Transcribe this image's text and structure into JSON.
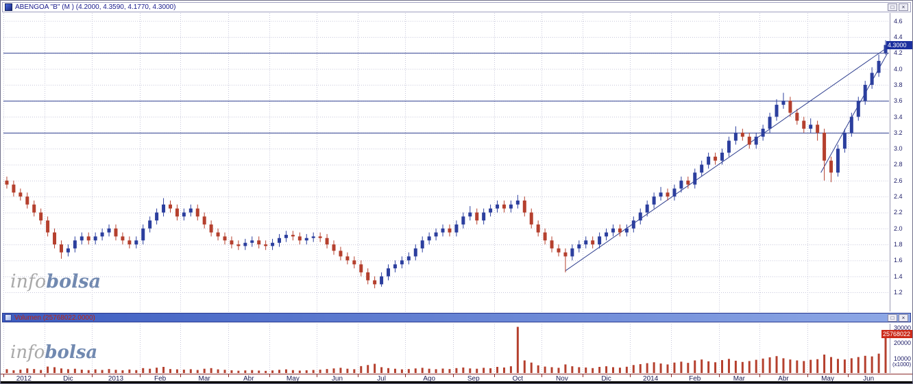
{
  "panes": {
    "price": {
      "title": "ABENGOA \"B\" (M ) (4.2000, 4.3590, 4.1770, 4.3000)"
    },
    "volume": {
      "title": "Volumen (25768022.0000)"
    }
  },
  "window_buttons": {
    "maximize": "□",
    "close": "×"
  },
  "watermark": {
    "info": "info",
    "bolsa": "bolsa"
  },
  "chart_data": [
    {
      "type": "candlestick",
      "title": "ABENGOA \"B\" (M )",
      "last_quote": {
        "open": 4.2,
        "high": 4.359,
        "low": 4.177,
        "close": 4.3
      },
      "ylim": [
        0.96,
        4.7
      ],
      "yticks": [
        4.6,
        4.4,
        4.2,
        4.0,
        3.8,
        3.6,
        3.4,
        3.2,
        3.0,
        2.8,
        2.6,
        2.4,
        2.2,
        2.0,
        1.8,
        1.6,
        1.4,
        1.2
      ],
      "levels": [
        4.2,
        3.6,
        3.2
      ],
      "trendlines": [
        {
          "x1": 82,
          "p1": 1.47,
          "x2": 129.8,
          "p2": 4.3
        },
        {
          "x1": 119.5,
          "p1": 2.7,
          "x2": 129.3,
          "p2": 4.2
        }
      ],
      "tag_value": 4.3,
      "tag_label": "4.3000",
      "months": [
        {
          "label": "2012",
          "start": 0
        },
        {
          "label": "Dic",
          "start": 6
        },
        {
          "label": "2013",
          "start": 13
        },
        {
          "label": "Feb",
          "start": 20
        },
        {
          "label": "Mar",
          "start": 26
        },
        {
          "label": "Abr",
          "start": 33
        },
        {
          "label": "May",
          "start": 39
        },
        {
          "label": "Jun",
          "start": 46
        },
        {
          "label": "Jul",
          "start": 52
        },
        {
          "label": "Ago",
          "start": 59
        },
        {
          "label": "Sep",
          "start": 66
        },
        {
          "label": "Oct",
          "start": 72
        },
        {
          "label": "Nov",
          "start": 79
        },
        {
          "label": "Dic",
          "start": 85
        },
        {
          "label": "2014",
          "start": 92
        },
        {
          "label": "Feb",
          "start": 98
        },
        {
          "label": "Mar",
          "start": 105
        },
        {
          "label": "Abr",
          "start": 111
        },
        {
          "label": "May",
          "start": 118
        },
        {
          "label": "Jun",
          "start": 124
        }
      ],
      "bars": [
        [
          2.6,
          2.65,
          2.5,
          2.55
        ],
        [
          2.55,
          2.6,
          2.4,
          2.45
        ],
        [
          2.45,
          2.5,
          2.35,
          2.4
        ],
        [
          2.4,
          2.45,
          2.25,
          2.3
        ],
        [
          2.3,
          2.35,
          2.15,
          2.2
        ],
        [
          2.2,
          2.25,
          2.05,
          2.1
        ],
        [
          2.1,
          2.15,
          1.9,
          1.95
        ],
        [
          1.95,
          2.0,
          1.75,
          1.8
        ],
        [
          1.8,
          1.85,
          1.62,
          1.7
        ],
        [
          1.7,
          1.8,
          1.65,
          1.75
        ],
        [
          1.75,
          1.9,
          1.7,
          1.85
        ],
        [
          1.85,
          1.95,
          1.8,
          1.9
        ],
        [
          1.9,
          1.95,
          1.8,
          1.85
        ],
        [
          1.85,
          1.95,
          1.8,
          1.9
        ],
        [
          1.9,
          2.0,
          1.85,
          1.95
        ],
        [
          1.95,
          2.05,
          1.9,
          2.0
        ],
        [
          2.0,
          2.05,
          1.85,
          1.9
        ],
        [
          1.9,
          1.95,
          1.8,
          1.85
        ],
        [
          1.85,
          1.9,
          1.75,
          1.8
        ],
        [
          1.8,
          1.9,
          1.75,
          1.85
        ],
        [
          1.85,
          2.05,
          1.8,
          2.0
        ],
        [
          2.0,
          2.15,
          1.95,
          2.1
        ],
        [
          2.1,
          2.25,
          2.05,
          2.2
        ],
        [
          2.2,
          2.38,
          2.15,
          2.3
        ],
        [
          2.3,
          2.35,
          2.2,
          2.25
        ],
        [
          2.25,
          2.3,
          2.1,
          2.15
        ],
        [
          2.15,
          2.25,
          2.1,
          2.2
        ],
        [
          2.2,
          2.3,
          2.15,
          2.25
        ],
        [
          2.25,
          2.3,
          2.1,
          2.15
        ],
        [
          2.15,
          2.2,
          2.0,
          2.05
        ],
        [
          2.05,
          2.1,
          1.9,
          1.95
        ],
        [
          1.95,
          2.0,
          1.85,
          1.9
        ],
        [
          1.9,
          1.95,
          1.8,
          1.85
        ],
        [
          1.85,
          1.9,
          1.75,
          1.8
        ],
        [
          1.8,
          1.85,
          1.73,
          1.78
        ],
        [
          1.78,
          1.87,
          1.73,
          1.82
        ],
        [
          1.82,
          1.9,
          1.77,
          1.85
        ],
        [
          1.85,
          1.9,
          1.75,
          1.8
        ],
        [
          1.8,
          1.85,
          1.73,
          1.78
        ],
        [
          1.78,
          1.87,
          1.73,
          1.82
        ],
        [
          1.82,
          1.93,
          1.77,
          1.88
        ],
        [
          1.88,
          1.97,
          1.83,
          1.92
        ],
        [
          1.92,
          1.97,
          1.85,
          1.9
        ],
        [
          1.9,
          1.95,
          1.8,
          1.85
        ],
        [
          1.85,
          1.93,
          1.8,
          1.88
        ],
        [
          1.88,
          1.95,
          1.83,
          1.9
        ],
        [
          1.9,
          1.95,
          1.83,
          1.88
        ],
        [
          1.88,
          1.93,
          1.75,
          1.8
        ],
        [
          1.8,
          1.85,
          1.67,
          1.72
        ],
        [
          1.72,
          1.77,
          1.6,
          1.65
        ],
        [
          1.65,
          1.7,
          1.55,
          1.6
        ],
        [
          1.6,
          1.65,
          1.5,
          1.55
        ],
        [
          1.55,
          1.6,
          1.4,
          1.45
        ],
        [
          1.45,
          1.5,
          1.3,
          1.35
        ],
        [
          1.35,
          1.4,
          1.25,
          1.3
        ],
        [
          1.3,
          1.45,
          1.27,
          1.4
        ],
        [
          1.4,
          1.55,
          1.35,
          1.5
        ],
        [
          1.5,
          1.6,
          1.45,
          1.55
        ],
        [
          1.55,
          1.65,
          1.5,
          1.6
        ],
        [
          1.6,
          1.7,
          1.55,
          1.65
        ],
        [
          1.65,
          1.8,
          1.6,
          1.75
        ],
        [
          1.75,
          1.9,
          1.7,
          1.85
        ],
        [
          1.85,
          1.95,
          1.8,
          1.9
        ],
        [
          1.9,
          2.0,
          1.85,
          1.95
        ],
        [
          1.95,
          2.05,
          1.9,
          2.0
        ],
        [
          2.0,
          2.05,
          1.9,
          1.95
        ],
        [
          1.95,
          2.1,
          1.9,
          2.05
        ],
        [
          2.05,
          2.2,
          2.0,
          2.15
        ],
        [
          2.15,
          2.28,
          2.1,
          2.2
        ],
        [
          2.2,
          2.25,
          2.05,
          2.1
        ],
        [
          2.1,
          2.25,
          2.05,
          2.2
        ],
        [
          2.2,
          2.3,
          2.15,
          2.25
        ],
        [
          2.25,
          2.35,
          2.2,
          2.3
        ],
        [
          2.3,
          2.35,
          2.2,
          2.25
        ],
        [
          2.25,
          2.35,
          2.2,
          2.3
        ],
        [
          2.3,
          2.42,
          2.25,
          2.35
        ],
        [
          2.35,
          2.4,
          2.15,
          2.2
        ],
        [
          2.2,
          2.25,
          2.0,
          2.05
        ],
        [
          2.05,
          2.1,
          1.9,
          1.95
        ],
        [
          1.95,
          2.0,
          1.8,
          1.85
        ],
        [
          1.85,
          1.9,
          1.7,
          1.75
        ],
        [
          1.75,
          1.8,
          1.65,
          1.7
        ],
        [
          1.7,
          1.75,
          1.45,
          1.65
        ],
        [
          1.65,
          1.8,
          1.6,
          1.75
        ],
        [
          1.75,
          1.85,
          1.7,
          1.8
        ],
        [
          1.8,
          1.9,
          1.75,
          1.85
        ],
        [
          1.85,
          1.9,
          1.75,
          1.8
        ],
        [
          1.8,
          1.95,
          1.75,
          1.9
        ],
        [
          1.9,
          2.0,
          1.85,
          1.95
        ],
        [
          1.95,
          2.05,
          1.9,
          2.0
        ],
        [
          2.0,
          2.05,
          1.9,
          1.95
        ],
        [
          1.95,
          2.05,
          1.9,
          2.0
        ],
        [
          2.0,
          2.15,
          1.95,
          2.1
        ],
        [
          2.1,
          2.25,
          2.05,
          2.2
        ],
        [
          2.2,
          2.35,
          2.15,
          2.3
        ],
        [
          2.3,
          2.45,
          2.25,
          2.4
        ],
        [
          2.4,
          2.52,
          2.35,
          2.45
        ],
        [
          2.45,
          2.5,
          2.35,
          2.4
        ],
        [
          2.4,
          2.55,
          2.35,
          2.5
        ],
        [
          2.5,
          2.65,
          2.45,
          2.6
        ],
        [
          2.6,
          2.65,
          2.5,
          2.55
        ],
        [
          2.55,
          2.75,
          2.5,
          2.7
        ],
        [
          2.7,
          2.85,
          2.65,
          2.8
        ],
        [
          2.8,
          2.95,
          2.75,
          2.9
        ],
        [
          2.9,
          2.95,
          2.8,
          2.85
        ],
        [
          2.85,
          3.0,
          2.8,
          2.95
        ],
        [
          2.95,
          3.15,
          2.9,
          3.1
        ],
        [
          3.1,
          3.28,
          3.05,
          3.2
        ],
        [
          3.2,
          3.25,
          3.1,
          3.15
        ],
        [
          3.15,
          3.2,
          3.0,
          3.05
        ],
        [
          3.05,
          3.2,
          3.0,
          3.15
        ],
        [
          3.15,
          3.3,
          3.1,
          3.25
        ],
        [
          3.25,
          3.45,
          3.2,
          3.4
        ],
        [
          3.4,
          3.62,
          3.35,
          3.55
        ],
        [
          3.55,
          3.7,
          3.5,
          3.6
        ],
        [
          3.6,
          3.65,
          3.4,
          3.45
        ],
        [
          3.45,
          3.5,
          3.3,
          3.35
        ],
        [
          3.35,
          3.4,
          3.2,
          3.25
        ],
        [
          3.25,
          3.38,
          3.2,
          3.3
        ],
        [
          3.3,
          3.35,
          3.1,
          3.2
        ],
        [
          3.2,
          3.25,
          2.6,
          2.85
        ],
        [
          2.85,
          2.9,
          2.58,
          2.7
        ],
        [
          2.7,
          3.05,
          2.65,
          3.0
        ],
        [
          3.0,
          3.25,
          2.95,
          3.2
        ],
        [
          3.2,
          3.45,
          3.15,
          3.4
        ],
        [
          3.4,
          3.65,
          3.35,
          3.6
        ],
        [
          3.6,
          3.85,
          3.55,
          3.8
        ],
        [
          3.8,
          4.02,
          3.75,
          3.95
        ],
        [
          3.95,
          4.18,
          3.9,
          4.1
        ],
        [
          4.2,
          4.359,
          4.177,
          4.3
        ]
      ],
      "colors": {
        "up": "#2c3f9e",
        "down": "#b5402e",
        "level": "#2f3f8f",
        "trend": "#2f3f8f",
        "grid": "#c6c6da"
      }
    },
    {
      "type": "bar",
      "title": "Volumen",
      "ylim": [
        0,
        32000
      ],
      "yticks": [
        30000,
        20000,
        10000
      ],
      "unit_label": "(x1000)",
      "tag_value": 25768,
      "tag_label": "25768022",
      "values": [
        2500,
        1800,
        2200,
        3000,
        2600,
        2000,
        4200,
        3800,
        3000,
        2500,
        2800,
        2200,
        1900,
        2400,
        2000,
        2600,
        2100,
        1800,
        2300,
        1900,
        3200,
        2800,
        3500,
        4000,
        2600,
        2400,
        2200,
        2500,
        2000,
        2800,
        3200,
        2400,
        2100,
        1800,
        1500,
        1700,
        1900,
        1600,
        1400,
        1700,
        2100,
        2400,
        1900,
        1600,
        1800,
        2000,
        2200,
        2600,
        3000,
        3400,
        2800,
        2500,
        4500,
        5200,
        6000,
        3800,
        3200,
        2800,
        2400,
        2600,
        3000,
        3400,
        2800,
        2500,
        2900,
        2600,
        3200,
        3600,
        3000,
        2800,
        3400,
        3100,
        4000,
        3600,
        4400,
        30000,
        8200,
        6800,
        5000,
        4200,
        3800,
        3400,
        5600,
        4400,
        3800,
        3600,
        3200,
        4000,
        4400,
        3800,
        3500,
        4100,
        5200,
        5800,
        6400,
        7000,
        6200,
        5600,
        6800,
        7400,
        6600,
        8200,
        8800,
        7600,
        7000,
        8400,
        9200,
        8000,
        7200,
        7800,
        8600,
        9400,
        10200,
        11000,
        9600,
        8800,
        8200,
        7800,
        8600,
        9000,
        12000,
        10400,
        9200,
        8800,
        9600,
        10400,
        11200,
        10800,
        12600,
        25768
      ],
      "color": "#b5402e"
    }
  ]
}
